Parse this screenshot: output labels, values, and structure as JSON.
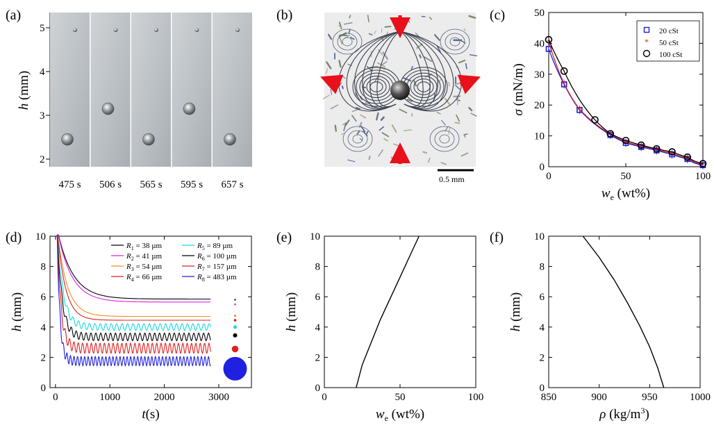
{
  "panel_labels": [
    "(a)",
    "(b)",
    "(c)",
    "(d)",
    "(e)",
    "(f)"
  ],
  "panel_a": {
    "ylabel_sym": "h",
    "ylabel_unit": "(mm)",
    "yticks": [
      "2",
      "3",
      "4",
      "5"
    ],
    "frame_labels": [
      "475 s",
      "506 s",
      "565 s",
      "595 s",
      "657 s"
    ],
    "bubble_heights_mm": [
      2.45,
      3.15,
      2.45,
      3.15,
      2.45
    ],
    "top_bubble_height_mm": 4.95
  },
  "panel_b": {
    "scale_label": "0.5 mm"
  },
  "chart_data": [
    {
      "panel": "c",
      "type": "line",
      "xlabel": "w",
      "xlabel_sub": "e",
      "xlabel_unit": " (wt%)",
      "ylabel": "σ",
      "ylabel_unit": " (mN/m)",
      "xlim": [
        0,
        100
      ],
      "ylim": [
        0,
        50
      ],
      "xticks": [
        "0",
        "50",
        "100"
      ],
      "yticks": [
        "0",
        "10",
        "20",
        "30",
        "40",
        "50"
      ],
      "series": [
        {
          "name": "20 cSt",
          "color": "#1f1fd6",
          "marker": "square",
          "x": [
            0,
            10,
            20,
            40,
            50,
            60,
            70,
            80,
            90,
            100
          ],
          "y": [
            38.2,
            26.7,
            18.4,
            10.3,
            7.7,
            6.4,
            5.3,
            4.0,
            2.5,
            0.5
          ]
        },
        {
          "name": "50 cSt",
          "color": "#d62020",
          "marker": "star",
          "x": [
            0,
            10,
            20,
            40,
            50,
            60,
            70,
            80,
            90,
            100
          ],
          "y": [
            40.5,
            26.9,
            18.6,
            10.6,
            8.0,
            6.7,
            5.6,
            4.3,
            2.8,
            0.7
          ]
        },
        {
          "name": "100 cSt",
          "color": "#000000",
          "marker": "circle",
          "x": [
            0,
            10,
            30,
            40,
            50,
            60,
            70,
            80,
            90,
            100
          ],
          "y": [
            41.2,
            31.0,
            15.2,
            10.7,
            8.5,
            7.0,
            5.8,
            4.8,
            3.1,
            1.0
          ]
        }
      ]
    },
    {
      "panel": "d",
      "type": "line",
      "xlabel": "t",
      "xlabel_unit": "(s)",
      "ylabel": "h",
      "ylabel_unit": " (mm)",
      "xlim": [
        -100,
        3600
      ],
      "ylim": [
        0,
        10
      ],
      "xticks": [
        "0",
        "1000",
        "2000",
        "3000"
      ],
      "yticks": [
        "0",
        "2",
        "4",
        "6",
        "8",
        "10"
      ],
      "series": [
        {
          "sym": "R",
          "sub": "1",
          "value": "38 µm",
          "color": "#000000",
          "plateau": 5.85,
          "amp": 0,
          "tau": 280,
          "osc_period": 0,
          "dot_r": 1.2
        },
        {
          "sym": "R",
          "sub": "2",
          "value": "41 µm",
          "color": "#e020e0",
          "plateau": 5.65,
          "amp": 0,
          "tau": 260,
          "osc_period": 0,
          "dot_r": 1.3
        },
        {
          "sym": "R",
          "sub": "3",
          "value": "54 µm",
          "color": "#f0901e",
          "plateau": 4.7,
          "amp": 0.05,
          "tau": 180,
          "osc_period": 0,
          "dot_r": 1.6
        },
        {
          "sym": "R",
          "sub": "4",
          "value": "66 µm",
          "color": "#e02020",
          "plateau": 4.45,
          "amp": 0.05,
          "tau": 150,
          "osc_period": 0,
          "dot_r": 1.9
        },
        {
          "sym": "R",
          "sub": "5",
          "value": "89 µm",
          "color": "#18d8e0",
          "plateau": 4.0,
          "amp": 0.22,
          "tau": 110,
          "osc_period": 100,
          "dot_r": 2.5
        },
        {
          "sym": "R",
          "sub": "6",
          "value": "100 µm",
          "color": "#000000",
          "plateau": 3.35,
          "amp": 0.25,
          "tau": 90,
          "osc_period": 90,
          "dot_r": 3.0
        },
        {
          "sym": "R",
          "sub": "7",
          "value": "157 µm",
          "color": "#e02020",
          "plateau": 2.6,
          "amp": 0.33,
          "tau": 70,
          "osc_period": 80,
          "dot_r": 4.8
        },
        {
          "sym": "R",
          "sub": "8",
          "value": "483 µm",
          "color": "#2020e0",
          "plateau": 1.75,
          "amp": 0.3,
          "tau": 50,
          "osc_period": 65,
          "dot_r": 17
        }
      ],
      "t_end": 2850,
      "dot_x": 3300,
      "dot_y": [
        5.8,
        5.5,
        4.75,
        4.45,
        4.0,
        3.45,
        2.55,
        1.25
      ]
    },
    {
      "panel": "e",
      "type": "line",
      "xlabel": "w",
      "xlabel_sub": "e",
      "xlabel_unit": " (wt%)",
      "ylabel": "h",
      "ylabel_unit": " (mm)",
      "xlim": [
        0,
        100
      ],
      "ylim": [
        0,
        10
      ],
      "xticks": [
        "0",
        "50",
        "100"
      ],
      "yticks": [
        "0",
        "2",
        "4",
        "6",
        "8",
        "10"
      ],
      "x": [
        21,
        25,
        31,
        37,
        44,
        50,
        56,
        62.5
      ],
      "y": [
        0,
        1.5,
        3.0,
        4.5,
        6.0,
        7.3,
        8.6,
        10
      ]
    },
    {
      "panel": "f",
      "type": "line",
      "xlabel": "ρ",
      "xlabel_unit": " (kg/m",
      "xlabel_sup": "3",
      "xlabel_close": ")",
      "ylabel": "h",
      "ylabel_unit": " (mm)",
      "xlim": [
        850,
        1000
      ],
      "ylim": [
        0,
        10
      ],
      "xticks": [
        "850",
        "900",
        "950",
        "1000"
      ],
      "yticks": [
        "0",
        "2",
        "4",
        "6",
        "8",
        "10"
      ],
      "x": [
        884,
        900,
        915,
        928,
        940,
        950,
        958,
        964
      ],
      "y": [
        10,
        8.6,
        7.1,
        5.6,
        4.1,
        2.7,
        1.3,
        0
      ]
    }
  ]
}
